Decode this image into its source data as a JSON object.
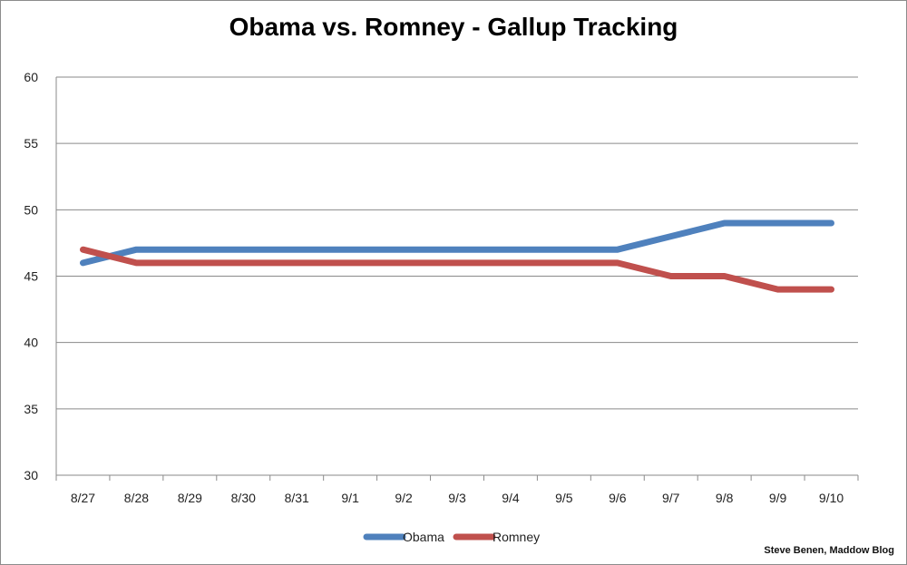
{
  "chart_data": {
    "type": "line",
    "title": "Obama vs. Romney - Gallup Tracking",
    "categories": [
      "8/27",
      "8/28",
      "8/29",
      "8/30",
      "8/31",
      "9/1",
      "9/2",
      "9/3",
      "9/4",
      "9/5",
      "9/6",
      "9/7",
      "9/8",
      "9/9",
      "9/10"
    ],
    "series": [
      {
        "name": "Obama",
        "color": "#4F81BD",
        "values": [
          46,
          47,
          47,
          47,
          47,
          47,
          47,
          47,
          47,
          47,
          47,
          48,
          49,
          49,
          49
        ]
      },
      {
        "name": "Romney",
        "color": "#C0504D",
        "values": [
          47,
          46,
          46,
          46,
          46,
          46,
          46,
          46,
          46,
          46,
          46,
          45,
          45,
          44,
          44
        ]
      }
    ],
    "ylim": [
      30,
      60
    ],
    "yticks": [
      30,
      35,
      40,
      45,
      50,
      55,
      60
    ],
    "grid": true,
    "legend": "bottom"
  },
  "credit": "Steve Benen, Maddow Blog"
}
